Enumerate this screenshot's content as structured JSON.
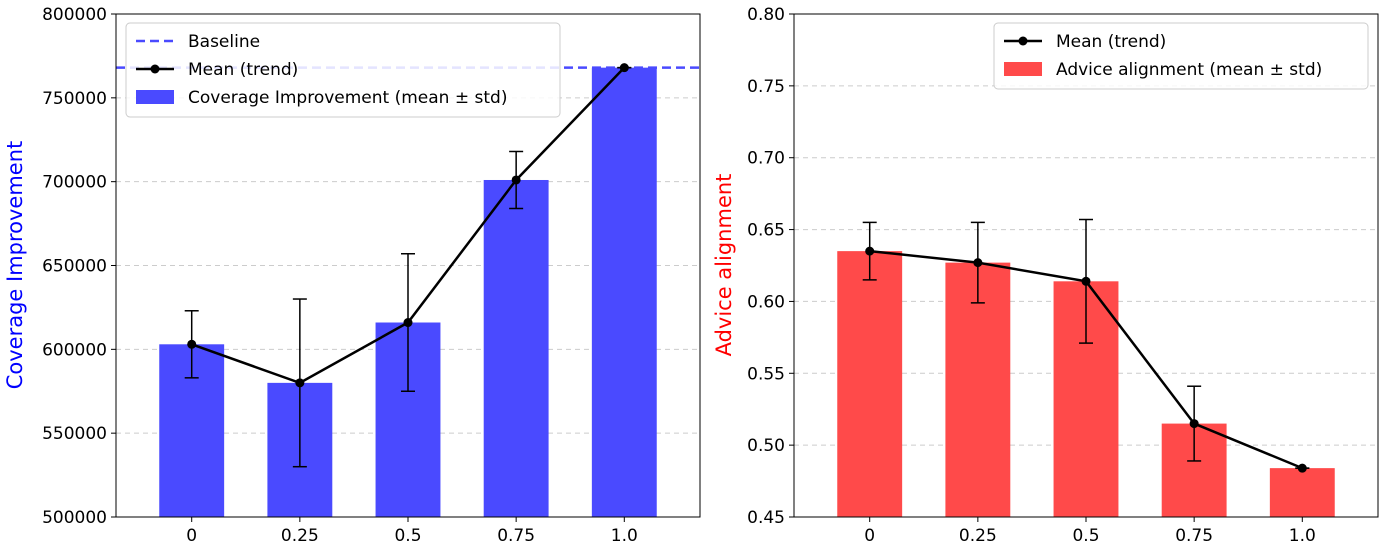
{
  "chart_data": [
    {
      "type": "bar",
      "categories": [
        "0",
        "0.25",
        "0.5",
        "0.75",
        "1.0"
      ],
      "series": [
        {
          "name": "Coverage Improvement (mean ± std)",
          "values": [
            603000,
            580000,
            616000,
            701000,
            768000
          ],
          "errors": [
            20000,
            50000,
            41000,
            17000,
            0
          ],
          "color": "#4a4aff"
        }
      ],
      "trend": {
        "name": "Mean (trend)",
        "values": [
          603000,
          580000,
          616000,
          701000,
          768000
        ],
        "color": "#000000"
      },
      "baseline": {
        "name": "Baseline",
        "value": 768000,
        "color": "#4a4aff"
      },
      "ylabel": "Coverage Improvement",
      "ylabel_color": "#0000ff",
      "xlabel": "",
      "title": "",
      "ylim": [
        500000,
        800000
      ],
      "yticks": [
        "500000",
        "550000",
        "600000",
        "650000",
        "700000",
        "750000",
        "800000"
      ],
      "ytick_values": [
        500000,
        550000,
        600000,
        650000,
        700000,
        750000,
        800000
      ],
      "grid": "y-dashed",
      "legend_position": "top-left"
    },
    {
      "type": "bar",
      "categories": [
        "0",
        "0.25",
        "0.5",
        "0.75",
        "1.0"
      ],
      "series": [
        {
          "name": "Advice alignment (mean ± std)",
          "values": [
            0.635,
            0.627,
            0.614,
            0.515,
            0.484
          ],
          "errors": [
            0.02,
            0.028,
            0.043,
            0.026,
            0.0
          ],
          "color": "#ff4a4a"
        }
      ],
      "trend": {
        "name": "Mean (trend)",
        "values": [
          0.635,
          0.627,
          0.614,
          0.515,
          0.484
        ],
        "color": "#000000"
      },
      "ylabel": "Advice alignment",
      "ylabel_color": "#ff0000",
      "xlabel": "",
      "title": "",
      "ylim": [
        0.45,
        0.8
      ],
      "yticks": [
        "0.45",
        "0.50",
        "0.55",
        "0.60",
        "0.65",
        "0.70",
        "0.75",
        "0.80"
      ],
      "ytick_values": [
        0.45,
        0.5,
        0.55,
        0.6,
        0.65,
        0.7,
        0.75,
        0.8
      ],
      "grid": "y-dashed",
      "legend_position": "top-right"
    }
  ]
}
